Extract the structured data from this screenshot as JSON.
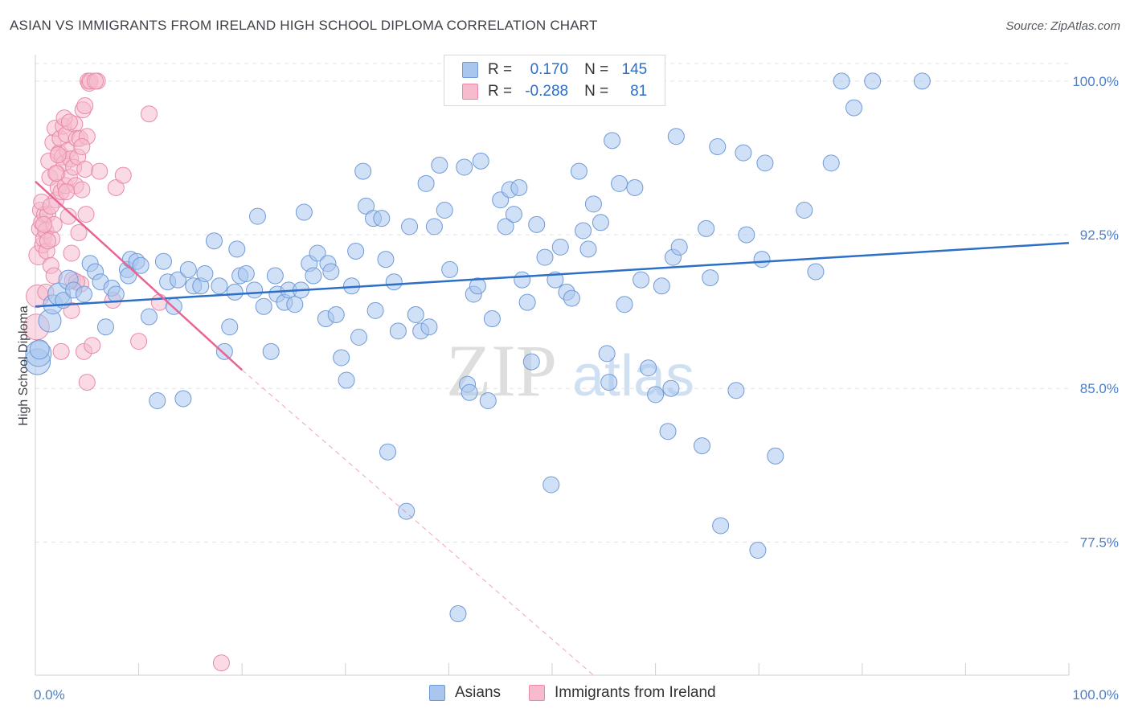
{
  "title": "ASIAN VS IMMIGRANTS FROM IRELAND HIGH SCHOOL DIPLOMA CORRELATION CHART",
  "source": "Source: ZipAtlas.com",
  "watermark": {
    "zip": "ZIP",
    "atlas": "atlas"
  },
  "legend": {
    "rows": [
      {
        "r_label": "R =",
        "r_value": "0.170",
        "n_label": "N =",
        "n_value": "145",
        "color": "#a9c6ef",
        "border": "#6f9ad8"
      },
      {
        "r_label": "R =",
        "r_value": "-0.288",
        "n_label": "N =",
        "n_value": "81",
        "color": "#f6bccd",
        "border": "#e98aa6"
      }
    ]
  },
  "bottom_legend": [
    {
      "label": "Asians",
      "color": "#a9c6ef",
      "border": "#6f9ad8"
    },
    {
      "label": "Immigrants from Ireland",
      "color": "#f6bccd",
      "border": "#e98aa6"
    }
  ],
  "chart_data": {
    "type": "scatter",
    "title": "ASIAN VS IMMIGRANTS FROM IRELAND HIGH SCHOOL DIPLOMA CORRELATION CHART",
    "xlabel": "",
    "ylabel": "High School Diploma",
    "xlim": [
      0,
      100
    ],
    "ylim": [
      71.0,
      100.9
    ],
    "x_tick_labels": [
      {
        "value": 0,
        "label": "0.0%"
      },
      {
        "value": 100,
        "label": "100.0%"
      }
    ],
    "y_tick_labels": [
      {
        "value": 100.0,
        "label": "100.0%"
      },
      {
        "value": 92.5,
        "label": "92.5%"
      },
      {
        "value": 85.0,
        "label": "85.0%"
      },
      {
        "value": 77.5,
        "label": "77.5%"
      }
    ],
    "grid": true,
    "series": [
      {
        "name": "Asians",
        "color": "#a9c6ef",
        "stroke": "#6f9ad8",
        "trend": {
          "x": [
            0,
            100
          ],
          "y": [
            89.0,
            92.1
          ],
          "color": "#2d6fc7"
        },
        "points": [
          [
            0.2,
            86.3,
            16
          ],
          [
            0.3,
            86.7,
            16
          ],
          [
            0.4,
            86.9,
            12
          ],
          [
            1.4,
            88.3,
            14
          ],
          [
            1.7,
            89.1,
            12
          ],
          [
            2.3,
            89.6,
            14
          ],
          [
            2.7,
            89.3,
            10
          ],
          [
            3.2,
            90.3,
            12
          ],
          [
            3.7,
            89.8,
            10
          ],
          [
            4.7,
            89.6,
            10
          ],
          [
            5.3,
            91.1,
            10
          ],
          [
            5.8,
            90.7,
            10
          ],
          [
            6.3,
            90.2,
            10
          ],
          [
            6.8,
            88.0,
            10
          ],
          [
            7.4,
            89.9,
            10
          ],
          [
            7.8,
            89.6,
            10
          ],
          [
            8.9,
            90.8,
            10
          ],
          [
            9.0,
            90.5,
            10
          ],
          [
            9.2,
            91.3,
            10
          ],
          [
            9.8,
            91.2,
            10
          ],
          [
            10.2,
            91.0,
            10
          ],
          [
            11.0,
            88.5,
            10
          ],
          [
            11.8,
            84.4,
            10
          ],
          [
            12.4,
            91.2,
            10
          ],
          [
            12.8,
            90.2,
            10
          ],
          [
            13.4,
            89.0,
            10
          ],
          [
            13.8,
            90.3,
            10
          ],
          [
            14.3,
            84.5,
            10
          ],
          [
            14.8,
            90.8,
            10
          ],
          [
            15.3,
            90.0,
            10
          ],
          [
            16.0,
            90.0,
            10
          ],
          [
            16.4,
            90.6,
            10
          ],
          [
            17.3,
            92.2,
            10
          ],
          [
            17.8,
            90.0,
            10
          ],
          [
            18.3,
            86.8,
            10
          ],
          [
            18.8,
            88.0,
            10
          ],
          [
            19.3,
            89.7,
            10
          ],
          [
            19.5,
            91.8,
            10
          ],
          [
            19.8,
            90.5,
            10
          ],
          [
            20.4,
            90.6,
            10
          ],
          [
            21.2,
            89.8,
            10
          ],
          [
            21.5,
            93.4,
            10
          ],
          [
            22.1,
            89.0,
            10
          ],
          [
            22.8,
            86.8,
            10
          ],
          [
            23.2,
            90.5,
            10
          ],
          [
            23.4,
            89.6,
            10
          ],
          [
            24.1,
            89.2,
            10
          ],
          [
            24.5,
            89.8,
            10
          ],
          [
            25.1,
            89.1,
            10
          ],
          [
            25.7,
            89.8,
            10
          ],
          [
            26.0,
            93.6,
            10
          ],
          [
            26.5,
            91.1,
            10
          ],
          [
            26.9,
            90.5,
            10
          ],
          [
            27.3,
            91.6,
            10
          ],
          [
            28.1,
            88.4,
            10
          ],
          [
            28.3,
            91.1,
            10
          ],
          [
            28.6,
            90.7,
            10
          ],
          [
            29.1,
            88.6,
            10
          ],
          [
            29.6,
            86.5,
            10
          ],
          [
            30.1,
            85.4,
            10
          ],
          [
            30.6,
            90.0,
            10
          ],
          [
            31.0,
            91.7,
            10
          ],
          [
            31.3,
            87.5,
            10
          ],
          [
            31.7,
            95.6,
            10
          ],
          [
            32.0,
            93.9,
            10
          ],
          [
            32.7,
            93.3,
            10
          ],
          [
            32.9,
            88.8,
            10
          ],
          [
            33.5,
            93.3,
            10
          ],
          [
            33.9,
            91.3,
            10
          ],
          [
            34.1,
            81.9,
            10
          ],
          [
            34.7,
            90.2,
            10
          ],
          [
            35.1,
            87.8,
            10
          ],
          [
            35.9,
            79.0,
            10
          ],
          [
            36.2,
            92.9,
            10
          ],
          [
            36.8,
            88.6,
            10
          ],
          [
            37.3,
            87.8,
            10
          ],
          [
            37.8,
            95.0,
            10
          ],
          [
            38.1,
            88.0,
            10
          ],
          [
            38.6,
            92.9,
            10
          ],
          [
            39.1,
            95.9,
            10
          ],
          [
            39.6,
            93.7,
            10
          ],
          [
            40.1,
            90.8,
            10
          ],
          [
            40.9,
            74.0,
            10
          ],
          [
            41.5,
            95.8,
            10
          ],
          [
            41.8,
            85.2,
            10
          ],
          [
            42.0,
            84.8,
            10
          ],
          [
            42.4,
            89.6,
            10
          ],
          [
            42.8,
            90.0,
            10
          ],
          [
            43.1,
            96.1,
            10
          ],
          [
            43.8,
            84.4,
            10
          ],
          [
            44.2,
            88.4,
            10
          ],
          [
            45.0,
            94.2,
            10
          ],
          [
            45.5,
            92.9,
            10
          ],
          [
            45.9,
            94.7,
            10
          ],
          [
            46.3,
            93.5,
            10
          ],
          [
            46.8,
            94.8,
            10
          ],
          [
            47.1,
            90.3,
            10
          ],
          [
            47.6,
            89.2,
            10
          ],
          [
            48.0,
            86.3,
            10
          ],
          [
            48.5,
            93.0,
            10
          ],
          [
            49.3,
            91.4,
            10
          ],
          [
            49.9,
            80.3,
            10
          ],
          [
            50.3,
            90.3,
            10
          ],
          [
            50.8,
            91.9,
            10
          ],
          [
            51.4,
            89.7,
            10
          ],
          [
            51.9,
            89.4,
            10
          ],
          [
            52.6,
            95.6,
            10
          ],
          [
            53.0,
            92.7,
            10
          ],
          [
            53.5,
            91.8,
            10
          ],
          [
            54.0,
            94.0,
            10
          ],
          [
            54.7,
            93.1,
            10
          ],
          [
            55.3,
            86.7,
            10
          ],
          [
            55.8,
            97.1,
            10
          ],
          [
            56.5,
            95.0,
            10
          ],
          [
            57.0,
            89.1,
            10
          ],
          [
            58.0,
            94.8,
            10
          ],
          [
            58.6,
            90.3,
            10
          ],
          [
            59.3,
            86.0,
            10
          ],
          [
            60.0,
            84.7,
            10
          ],
          [
            60.6,
            90.0,
            10
          ],
          [
            61.2,
            82.9,
            10
          ],
          [
            61.7,
            91.4,
            10
          ],
          [
            62.0,
            97.3,
            10
          ],
          [
            62.3,
            91.9,
            10
          ],
          [
            64.5,
            82.2,
            10
          ],
          [
            64.9,
            92.8,
            10
          ],
          [
            65.3,
            90.4,
            10
          ],
          [
            66.0,
            96.8,
            10
          ],
          [
            66.3,
            78.3,
            10
          ],
          [
            67.8,
            84.9,
            10
          ],
          [
            68.5,
            96.5,
            10
          ],
          [
            68.8,
            92.5,
            10
          ],
          [
            69.9,
            77.1,
            10
          ],
          [
            70.3,
            91.3,
            10
          ],
          [
            70.6,
            96.0,
            10
          ],
          [
            71.6,
            81.7,
            10
          ],
          [
            74.4,
            93.7,
            10
          ],
          [
            75.5,
            90.7,
            10
          ],
          [
            77.0,
            96.0,
            10
          ],
          [
            78.0,
            100.0,
            10
          ],
          [
            79.2,
            98.7,
            10
          ],
          [
            81.0,
            100.0,
            10
          ],
          [
            85.8,
            100.0,
            10
          ],
          [
            61.5,
            85.0,
            10
          ],
          [
            55.5,
            85.3,
            10
          ]
        ]
      },
      {
        "name": "Immigrants from Ireland",
        "color": "#f6bccd",
        "stroke": "#e98aa6",
        "trend": {
          "x": [
            0,
            20
          ],
          "y": [
            95.1,
            85.9
          ],
          "color": "#e86596",
          "dash_to": [
            54,
            71.0
          ]
        },
        "points": [
          [
            0.1,
            88.0,
            16
          ],
          [
            0.2,
            89.5,
            14
          ],
          [
            0.3,
            91.5,
            12
          ],
          [
            0.4,
            92.8,
            10
          ],
          [
            0.5,
            93.7,
            10
          ],
          [
            0.6,
            93.1,
            10
          ],
          [
            0.7,
            92.0,
            10
          ],
          [
            0.8,
            92.3,
            10
          ],
          [
            0.9,
            93.5,
            10
          ],
          [
            1.0,
            92.7,
            10
          ],
          [
            1.1,
            91.7,
            10
          ],
          [
            1.2,
            93.5,
            10
          ],
          [
            1.3,
            96.1,
            10
          ],
          [
            1.4,
            95.3,
            10
          ],
          [
            1.5,
            91.0,
            10
          ],
          [
            1.6,
            92.3,
            10
          ],
          [
            1.7,
            97.0,
            10
          ],
          [
            1.8,
            93.0,
            10
          ],
          [
            1.9,
            97.7,
            10
          ],
          [
            2.0,
            94.2,
            10
          ],
          [
            2.1,
            95.5,
            10
          ],
          [
            2.2,
            94.8,
            10
          ],
          [
            2.3,
            96.5,
            10
          ],
          [
            2.4,
            97.2,
            10
          ],
          [
            2.5,
            94.6,
            10
          ],
          [
            2.6,
            96.3,
            10
          ],
          [
            2.7,
            97.8,
            10
          ],
          [
            2.8,
            96.0,
            10
          ],
          [
            2.9,
            94.9,
            10
          ],
          [
            3.0,
            97.4,
            10
          ],
          [
            3.1,
            96.6,
            10
          ],
          [
            3.2,
            93.4,
            10
          ],
          [
            3.3,
            95.3,
            10
          ],
          [
            3.4,
            96.2,
            10
          ],
          [
            3.5,
            91.6,
            10
          ],
          [
            3.6,
            90.3,
            10
          ],
          [
            3.7,
            95.8,
            10
          ],
          [
            3.8,
            97.9,
            10
          ],
          [
            3.9,
            94.9,
            10
          ],
          [
            4.0,
            97.2,
            10
          ],
          [
            4.1,
            96.3,
            10
          ],
          [
            4.2,
            92.6,
            10
          ],
          [
            4.3,
            97.2,
            10
          ],
          [
            4.4,
            90.1,
            10
          ],
          [
            4.5,
            94.7,
            10
          ],
          [
            4.6,
            98.6,
            10
          ],
          [
            4.7,
            86.8,
            10
          ],
          [
            4.8,
            95.7,
            10
          ],
          [
            4.9,
            93.5,
            10
          ],
          [
            5.0,
            97.3,
            10
          ],
          [
            5.1,
            100.0,
            10
          ],
          [
            5.2,
            99.9,
            10
          ],
          [
            5.3,
            100.0,
            10
          ],
          [
            6.0,
            100.0,
            10
          ],
          [
            6.2,
            95.6,
            10
          ],
          [
            7.5,
            89.3,
            10
          ],
          [
            7.8,
            94.8,
            10
          ],
          [
            8.5,
            95.4,
            10
          ],
          [
            10.0,
            87.3,
            10
          ],
          [
            11.0,
            98.4,
            10
          ],
          [
            12.0,
            89.2,
            10
          ],
          [
            5.5,
            87.1,
            10
          ],
          [
            5.0,
            85.3,
            10
          ],
          [
            4.0,
            90.2,
            10
          ],
          [
            3.5,
            88.8,
            10
          ],
          [
            2.5,
            86.8,
            10
          ],
          [
            1.8,
            90.5,
            10
          ],
          [
            1.2,
            92.2,
            10
          ],
          [
            0.8,
            93.0,
            10
          ],
          [
            0.6,
            94.1,
            10
          ],
          [
            3.0,
            94.6,
            10
          ],
          [
            2.0,
            95.5,
            10
          ],
          [
            4.5,
            96.8,
            10
          ],
          [
            5.8,
            100.0,
            10
          ],
          [
            1.5,
            93.9,
            10
          ],
          [
            2.8,
            98.2,
            10
          ],
          [
            3.3,
            98.0,
            10
          ],
          [
            2.2,
            96.4,
            10
          ],
          [
            1.0,
            89.7,
            10
          ],
          [
            18.0,
            71.6,
            10
          ],
          [
            4.8,
            98.8,
            10
          ]
        ]
      }
    ]
  }
}
